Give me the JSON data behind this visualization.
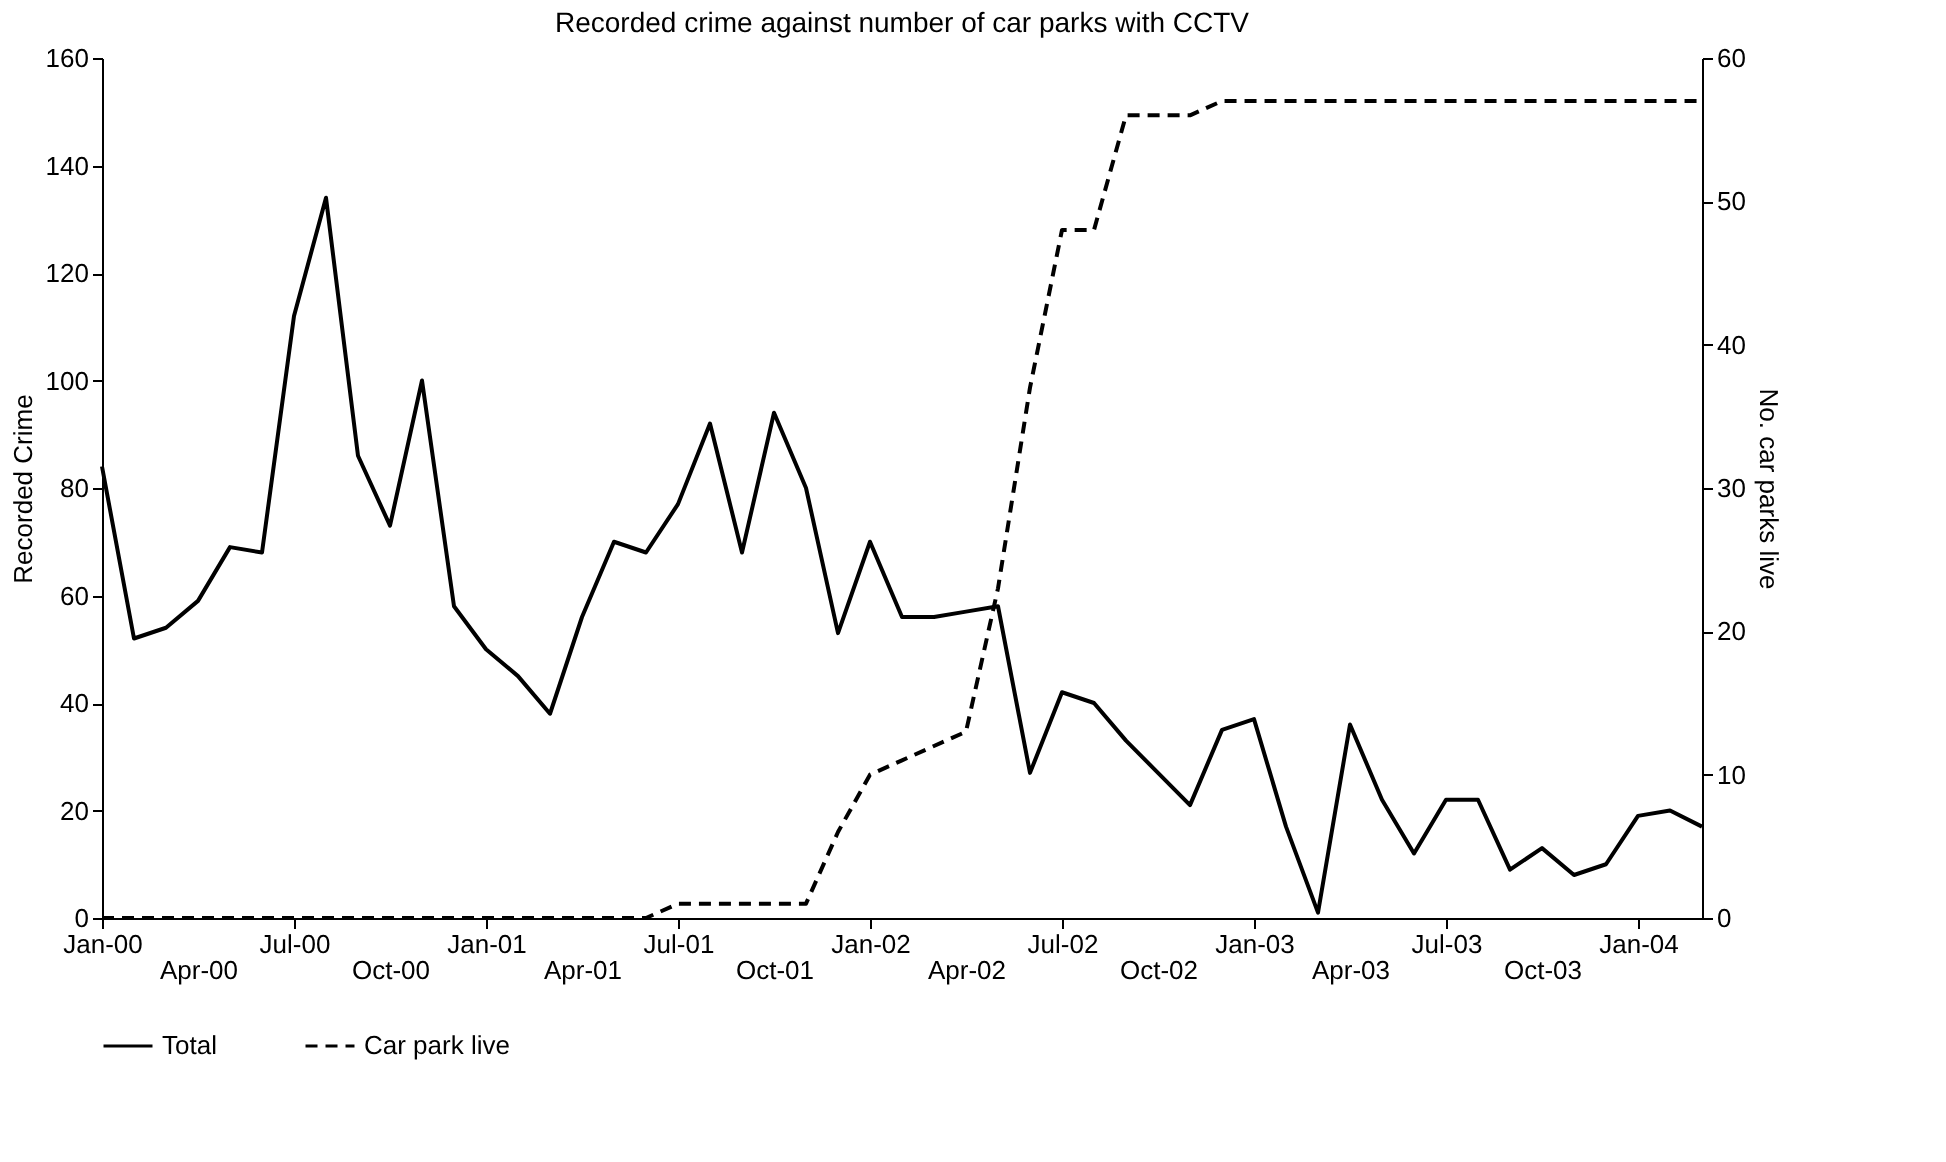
{
  "chart_data": {
    "type": "line",
    "title": "Recorded crime against number of car parks with CCTV",
    "ylabel": "Recorded Crime",
    "y2label": "No. car parks live",
    "categories": [
      "Jan-00",
      null,
      null,
      "Apr-00",
      null,
      null,
      "Jul-00",
      null,
      null,
      "Oct-00",
      null,
      null,
      "Jan-01",
      null,
      null,
      "Apr-01",
      null,
      null,
      "Jul-01",
      null,
      null,
      "Oct-01",
      null,
      null,
      "Jan-02",
      null,
      null,
      "Apr-02",
      null,
      null,
      "Jul-02",
      null,
      null,
      "Oct-02",
      null,
      null,
      "Jan-03",
      null,
      null,
      "Apr-03",
      null,
      null,
      "Jul-03",
      null,
      null,
      "Oct-03",
      null,
      null,
      "Jan-04",
      null,
      null
    ],
    "series": [
      {
        "name": "Total",
        "color": "#000000",
        "line_style": "solid",
        "values": [
          84,
          52,
          54,
          59,
          69,
          68,
          112,
          134,
          86,
          73,
          100,
          58,
          50,
          45,
          38,
          56,
          70,
          68,
          77,
          92,
          68,
          94,
          80,
          53,
          70,
          56,
          56,
          57,
          58,
          27,
          42,
          40,
          33,
          27,
          21,
          35,
          37,
          17,
          1,
          36,
          22,
          12,
          22,
          22,
          9,
          13,
          8,
          10,
          19,
          20,
          17
        ]
      },
      {
        "name": "Car park live",
        "color": "#000000",
        "line_style": "dashed",
        "axis": "y2",
        "values": [
          0,
          0,
          0,
          0,
          0,
          0,
          0,
          0,
          0,
          0,
          0,
          0,
          0,
          0,
          0,
          0,
          0,
          0,
          1,
          1,
          1,
          1,
          1,
          6,
          10,
          11,
          12,
          13,
          23,
          37,
          48,
          48,
          56,
          56,
          56,
          57,
          57,
          57,
          57,
          57,
          57,
          57,
          57,
          57,
          57,
          57,
          57,
          57,
          57,
          57,
          57
        ]
      }
    ],
    "ylim": [
      0,
      160
    ],
    "yticks": [
      0,
      20,
      40,
      60,
      80,
      100,
      120,
      140,
      160
    ],
    "y2lim": [
      0,
      60
    ],
    "y2ticks": [
      0,
      10,
      20,
      30,
      40,
      50,
      60
    ],
    "grid": false,
    "legend": "bottom"
  }
}
